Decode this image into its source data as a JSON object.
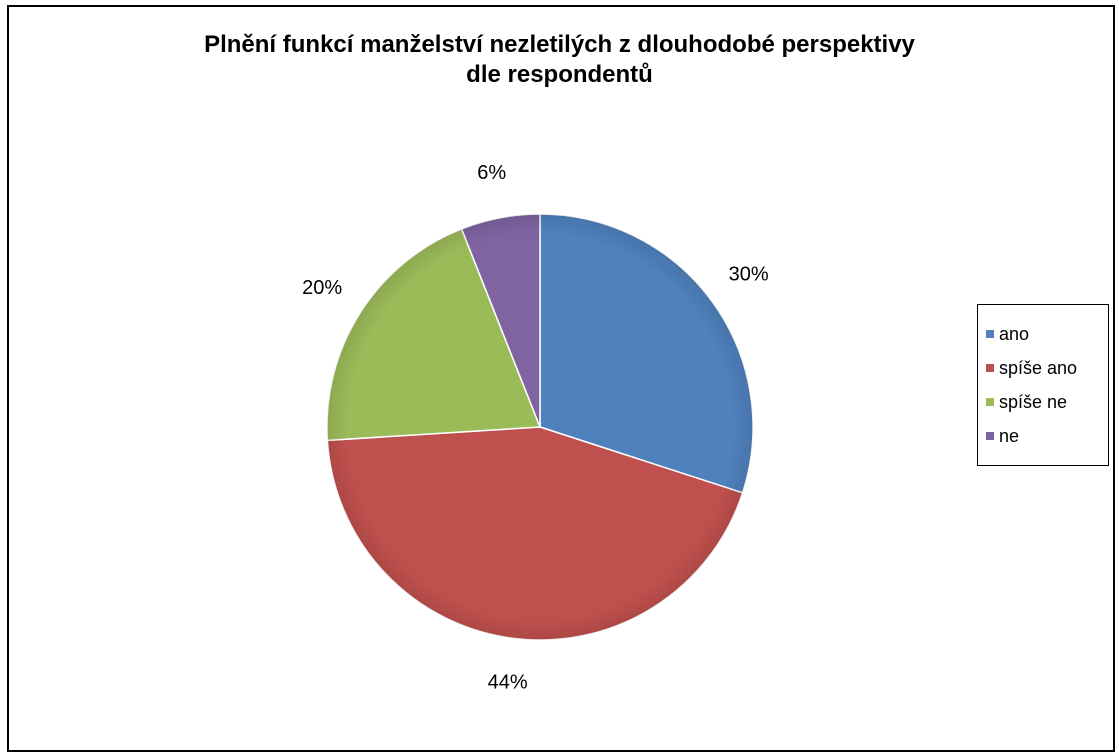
{
  "chart_data": {
    "type": "pie",
    "title_lines": [
      "Plnění funkcí manželství nezletilých z dlouhodobé perspektivy",
      "dle respondentů"
    ],
    "categories": [
      "ano",
      "spíše ano",
      "spíše ne",
      "ne"
    ],
    "values": [
      30,
      44,
      20,
      6
    ],
    "data_labels": [
      "30%",
      "44%",
      "20%",
      "6%"
    ],
    "colors": [
      "#4F81BD",
      "#C0504D",
      "#9BBB59",
      "#8064A2"
    ],
    "legend_position": "right",
    "start": "12 o'clock",
    "direction": "clockwise"
  }
}
